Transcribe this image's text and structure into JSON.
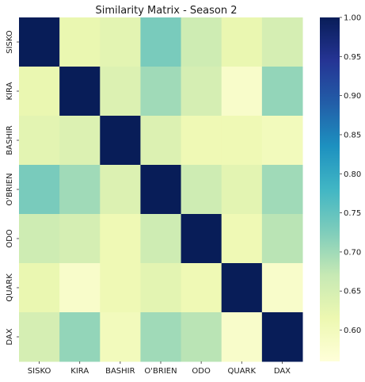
{
  "chart_data": {
    "type": "heatmap",
    "title": "Similarity Matrix - Season 2",
    "xlabel": "",
    "ylabel": "",
    "x_labels": [
      "SISKO",
      "KIRA",
      "BASHIR",
      "O'BRIEN",
      "ODO",
      "QUARK",
      "DAX"
    ],
    "y_labels": [
      "SISKO",
      "KIRA",
      "BASHIR",
      "O'BRIEN",
      "ODO",
      "QUARK",
      "DAX"
    ],
    "values": [
      [
        1.0,
        0.62,
        0.63,
        0.73,
        0.66,
        0.62,
        0.65
      ],
      [
        0.62,
        1.0,
        0.64,
        0.7,
        0.65,
        0.58,
        0.71
      ],
      [
        0.63,
        0.64,
        1.0,
        0.64,
        0.61,
        0.61,
        0.6
      ],
      [
        0.73,
        0.7,
        0.64,
        1.0,
        0.66,
        0.63,
        0.7
      ],
      [
        0.66,
        0.65,
        0.61,
        0.66,
        1.0,
        0.61,
        0.68
      ],
      [
        0.62,
        0.58,
        0.61,
        0.63,
        0.61,
        1.0,
        0.58
      ],
      [
        0.65,
        0.71,
        0.6,
        0.7,
        0.68,
        0.58,
        1.0
      ]
    ],
    "colorbar": {
      "min": 0.56,
      "max": 1.0,
      "ticks": [
        "0.60",
        "0.65",
        "0.70",
        "0.75",
        "0.80",
        "0.85",
        "0.90",
        "0.95",
        "1.00"
      ],
      "colormap": "YlGnBu"
    },
    "grid": false,
    "legend": "colorbar-right"
  }
}
